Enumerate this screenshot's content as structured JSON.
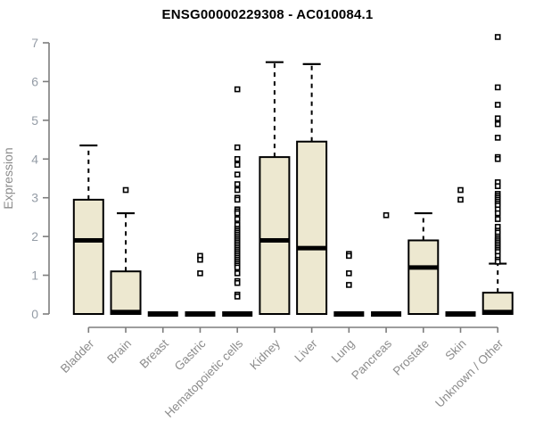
{
  "chart_data": {
    "type": "boxplot",
    "title": "ENSG00000229308 - AC010084.1",
    "xlabel": "",
    "ylabel": "Expression",
    "ylim": [
      0,
      7
    ],
    "yticks": [
      0,
      1,
      2,
      3,
      4,
      5,
      6,
      7
    ],
    "grid": false,
    "legend": "none",
    "categories": [
      "Bladder",
      "Brain",
      "Breast",
      "Gastric",
      "Hematopoietic cells",
      "Kidney",
      "Liver",
      "Lung",
      "Pancreas",
      "Prostate",
      "Skin",
      "Unknown / Other"
    ],
    "series": [
      {
        "category": "Bladder",
        "q1": 0,
        "median": 1.9,
        "q3": 2.95,
        "whisker_low": 0,
        "whisker_high": 4.35,
        "outliers": []
      },
      {
        "category": "Brain",
        "q1": 0,
        "median": 0.05,
        "q3": 1.1,
        "whisker_low": 0,
        "whisker_high": 2.6,
        "outliers": [
          3.2
        ]
      },
      {
        "category": "Breast",
        "q1": 0,
        "median": 0,
        "q3": 0,
        "whisker_low": 0,
        "whisker_high": 0,
        "outliers": []
      },
      {
        "category": "Gastric",
        "q1": 0,
        "median": 0,
        "q3": 0,
        "whisker_low": 0,
        "whisker_high": 0,
        "outliers": [
          1.5,
          1.4,
          1.05
        ]
      },
      {
        "category": "Hematopoietic cells",
        "q1": 0,
        "median": 0,
        "q3": 0,
        "whisker_low": 0,
        "whisker_high": 0,
        "outliers": [
          5.8,
          4.3,
          4.0,
          3.85,
          3.6,
          3.35,
          3.2,
          3.0,
          2.95,
          2.7,
          2.65,
          2.6,
          2.45,
          2.3,
          2.2,
          2.15,
          2.1,
          2.05,
          2.0,
          1.95,
          1.9,
          1.85,
          1.8,
          1.75,
          1.7,
          1.65,
          1.6,
          1.55,
          1.5,
          1.45,
          1.4,
          1.35,
          1.3,
          1.25,
          1.2,
          1.05,
          0.85,
          0.8,
          0.5,
          0.45
        ]
      },
      {
        "category": "Kidney",
        "q1": 0,
        "median": 1.9,
        "q3": 4.05,
        "whisker_low": 0,
        "whisker_high": 6.5,
        "outliers": []
      },
      {
        "category": "Liver",
        "q1": 0,
        "median": 1.7,
        "q3": 4.45,
        "whisker_low": 0,
        "whisker_high": 6.45,
        "outliers": []
      },
      {
        "category": "Lung",
        "q1": 0,
        "median": 0,
        "q3": 0,
        "whisker_low": 0,
        "whisker_high": 0,
        "outliers": [
          1.55,
          1.5,
          1.05,
          0.75
        ]
      },
      {
        "category": "Pancreas",
        "q1": 0,
        "median": 0,
        "q3": 0,
        "whisker_low": 0,
        "whisker_high": 0,
        "outliers": [
          2.55
        ]
      },
      {
        "category": "Prostate",
        "q1": 0,
        "median": 1.2,
        "q3": 1.9,
        "whisker_low": 0,
        "whisker_high": 2.6,
        "outliers": []
      },
      {
        "category": "Skin",
        "q1": 0,
        "median": 0,
        "q3": 0,
        "whisker_low": 0,
        "whisker_high": 0,
        "outliers": [
          3.2,
          2.95
        ]
      },
      {
        "category": "Unknown / Other",
        "q1": 0,
        "median": 0.05,
        "q3": 0.55,
        "whisker_low": 0,
        "whisker_high": 1.3,
        "outliers": [
          7.15,
          5.85,
          5.4,
          5.05,
          4.9,
          4.55,
          4.05,
          4.0,
          3.4,
          3.3,
          3.1,
          3.05,
          3.0,
          2.95,
          2.9,
          2.85,
          2.8,
          2.7,
          2.6,
          2.45,
          2.25,
          2.15,
          2.1,
          2.0,
          1.95,
          1.9,
          1.85,
          1.8,
          1.75,
          1.7,
          1.65,
          1.6,
          1.5,
          1.4,
          1.35
        ]
      }
    ],
    "colors": {
      "box_fill": "#ede8d0",
      "box_stroke": "#000000",
      "median": "#000000",
      "whisker": "#000000",
      "outlier_stroke": "#000000",
      "axis_line": "#7d7d7d",
      "y_tick_label": "#949ca6",
      "x_tick_label": "#8c8c8c",
      "axis_title": "#8c8c8c",
      "title": "#000000",
      "background": "#ffffff"
    }
  }
}
